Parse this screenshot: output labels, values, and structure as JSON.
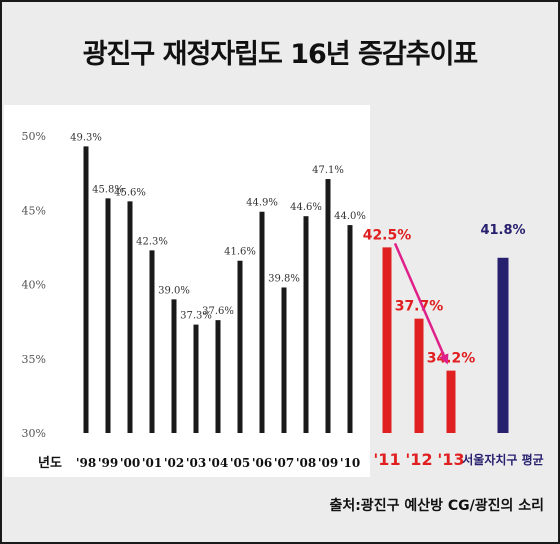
{
  "title": "광진구 재정자립도 16년 증감추이표",
  "source": "출처:광진구 예산방  CG/광진의 소리",
  "chart_data": {
    "type": "bar",
    "title": "광진구 재정자립도 16년 증감추이표",
    "x_axis_label": "년도",
    "ylim": [
      30,
      50
    ],
    "y_ticks": [
      "30%",
      "35%",
      "40%",
      "45%",
      "50%"
    ],
    "series": [
      {
        "color": "#1a1a1a",
        "categories": [
          "'98",
          "'99",
          "'00",
          "'01",
          "'02",
          "'03",
          "'04",
          "'05",
          "'06",
          "'07",
          "'08",
          "'09",
          "'10"
        ],
        "values": [
          49.3,
          45.8,
          45.6,
          42.3,
          39.0,
          37.3,
          37.6,
          41.6,
          44.9,
          39.8,
          44.6,
          47.1,
          44.0
        ],
        "labels": [
          "49.3%",
          "45.8%",
          "45.6%",
          "42.3%",
          "39.0%",
          "37.3%",
          "37.6%",
          "41.6%",
          "44.9%",
          "39.8%",
          "44.6%",
          "47.1%",
          "44.0%"
        ]
      },
      {
        "color": "#e02020",
        "categories": [
          "'11",
          "'12",
          "'13"
        ],
        "values": [
          42.5,
          37.7,
          34.2
        ],
        "labels": [
          "42.5%",
          "37.7%",
          "34.2%"
        ]
      },
      {
        "color": "#27206e",
        "categories": [
          "서울자치구 평균"
        ],
        "values": [
          41.8
        ],
        "labels": [
          "41.8%"
        ]
      }
    ],
    "trend_arrow_color": "#e0208a",
    "grid": false,
    "legend": "none"
  }
}
